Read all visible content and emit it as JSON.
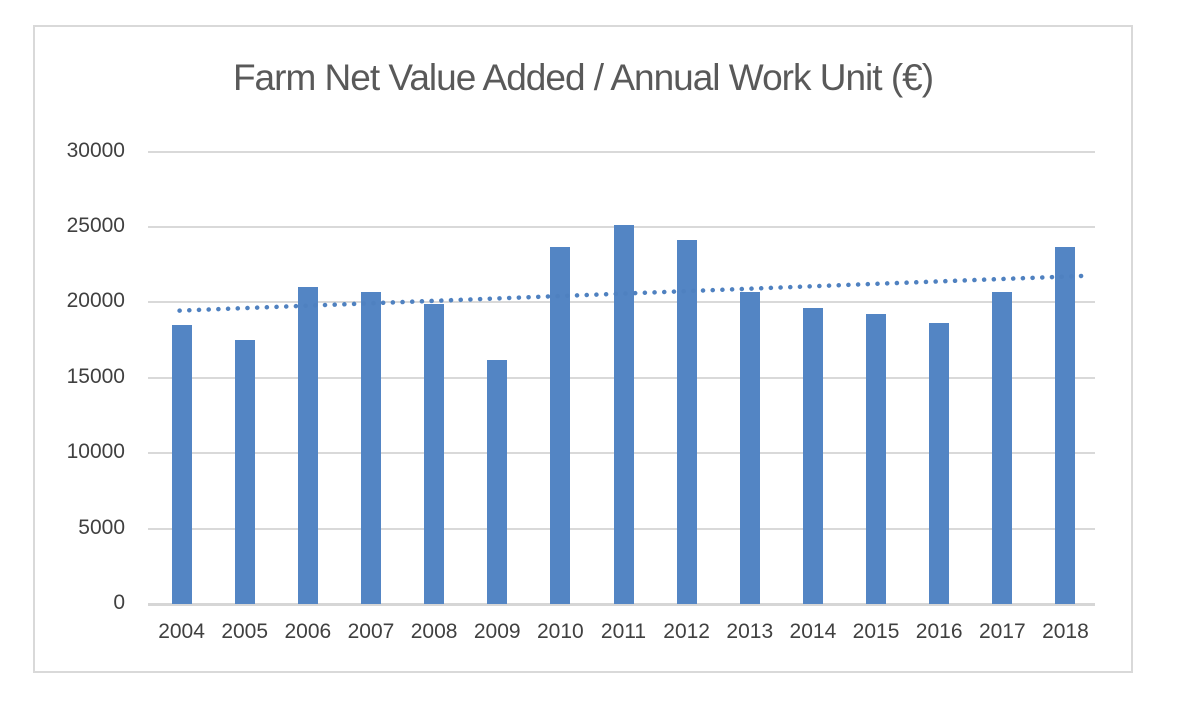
{
  "chart_data": {
    "type": "bar",
    "title": "Farm Net Value Added / Annual Work Unit (€)",
    "categories": [
      "2004",
      "2005",
      "2006",
      "2007",
      "2008",
      "2009",
      "2010",
      "2011",
      "2012",
      "2013",
      "2014",
      "2015",
      "2016",
      "2017",
      "2018"
    ],
    "values": [
      18500,
      17500,
      21000,
      20700,
      19900,
      16200,
      23700,
      25100,
      24100,
      20700,
      19600,
      19200,
      18600,
      20700,
      23700
    ],
    "xlabel": "",
    "ylabel": "",
    "ylim": [
      0,
      30000
    ],
    "ytick_step": 5000,
    "ytick_labels": [
      "0",
      "5000",
      "10000",
      "15000",
      "20000",
      "25000",
      "30000"
    ],
    "grid": true,
    "legend": "none",
    "trendline": {
      "type": "linear",
      "style": "dotted",
      "start_value": 19450,
      "end_value": 21750
    },
    "colors": {
      "bar": "#5385c4",
      "trendline": "#4f81c0",
      "gridline": "#d9d9d9",
      "axis_text": "#404040",
      "title_text": "#595959",
      "frame_border": "#d9d9d9"
    }
  }
}
